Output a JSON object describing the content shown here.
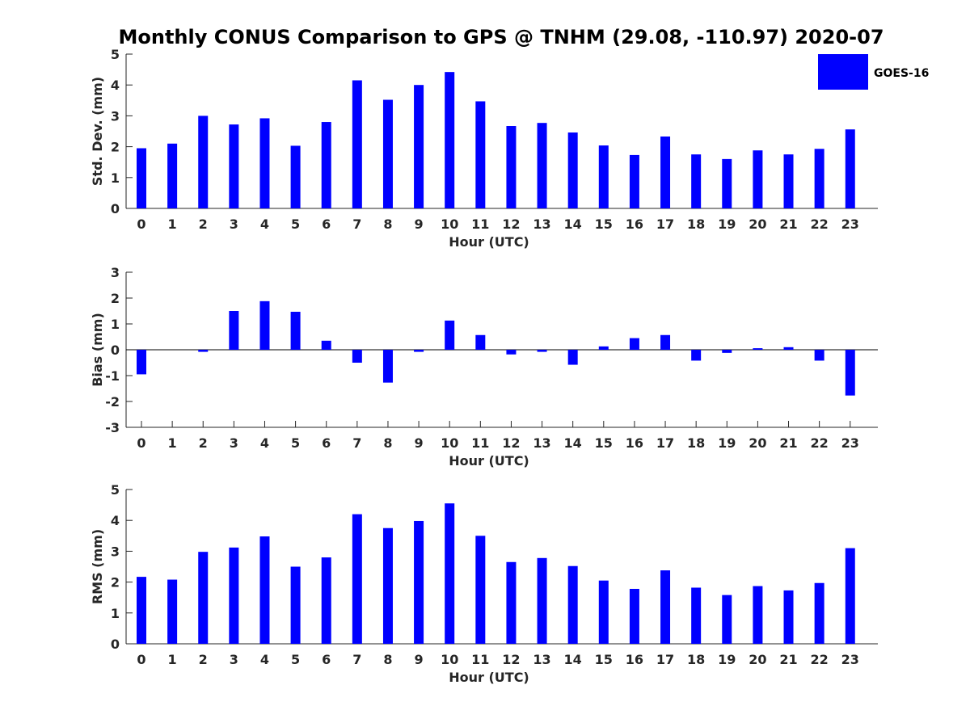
{
  "title": "Monthly CONUS Comparison to GPS @ TNHM (29.08, -110.97) 2020-07",
  "legend": {
    "label": "GOES-16",
    "color": "#0000ff",
    "placement": "top-right"
  },
  "chart_data": [
    {
      "type": "bar",
      "xlabel": "Hour (UTC)",
      "ylabel": "Std. Dev. (mm)",
      "categories": [
        "0",
        "1",
        "2",
        "3",
        "4",
        "5",
        "6",
        "7",
        "8",
        "9",
        "10",
        "11",
        "12",
        "13",
        "14",
        "15",
        "16",
        "17",
        "18",
        "19",
        "20",
        "21",
        "22",
        "23"
      ],
      "ylim": [
        0,
        5
      ],
      "yticks": [
        0,
        1,
        2,
        3,
        4,
        5
      ],
      "series": [
        {
          "name": "GOES-16",
          "color": "#0000ff",
          "values": [
            1.95,
            2.1,
            3.0,
            2.72,
            2.92,
            2.03,
            2.8,
            4.15,
            3.52,
            4.0,
            4.42,
            3.47,
            2.67,
            2.77,
            2.46,
            2.04,
            1.73,
            2.33,
            1.75,
            1.6,
            1.88,
            1.75,
            1.93,
            2.56
          ]
        }
      ]
    },
    {
      "type": "bar",
      "xlabel": "Hour (UTC)",
      "ylabel": "Bias (mm)",
      "categories": [
        "0",
        "1",
        "2",
        "3",
        "4",
        "5",
        "6",
        "7",
        "8",
        "9",
        "10",
        "11",
        "12",
        "13",
        "14",
        "15",
        "16",
        "17",
        "18",
        "19",
        "20",
        "21",
        "22",
        "23"
      ],
      "ylim": [
        -3,
        3
      ],
      "yticks": [
        -3,
        -2,
        -1,
        0,
        1,
        2,
        3
      ],
      "baseline": 0,
      "series": [
        {
          "name": "GOES-16",
          "color": "#0000ff",
          "values": [
            -0.95,
            0.0,
            -0.08,
            1.5,
            1.88,
            1.47,
            0.35,
            -0.5,
            -1.27,
            -0.08,
            1.13,
            0.57,
            -0.18,
            -0.08,
            -0.58,
            0.13,
            0.45,
            0.57,
            -0.42,
            -0.12,
            0.06,
            0.1,
            -0.42,
            -1.77
          ]
        }
      ]
    },
    {
      "type": "bar",
      "xlabel": "Hour (UTC)",
      "ylabel": "RMS (mm)",
      "categories": [
        "0",
        "1",
        "2",
        "3",
        "4",
        "5",
        "6",
        "7",
        "8",
        "9",
        "10",
        "11",
        "12",
        "13",
        "14",
        "15",
        "16",
        "17",
        "18",
        "19",
        "20",
        "21",
        "22",
        "23"
      ],
      "ylim": [
        0,
        5
      ],
      "yticks": [
        0,
        1,
        2,
        3,
        4,
        5
      ],
      "series": [
        {
          "name": "GOES-16",
          "color": "#0000ff",
          "values": [
            2.17,
            2.08,
            2.98,
            3.12,
            3.48,
            2.5,
            2.8,
            4.2,
            3.75,
            3.98,
            4.55,
            3.5,
            2.65,
            2.78,
            2.52,
            2.05,
            1.78,
            2.38,
            1.82,
            1.58,
            1.87,
            1.73,
            1.97,
            3.1
          ]
        }
      ]
    }
  ]
}
